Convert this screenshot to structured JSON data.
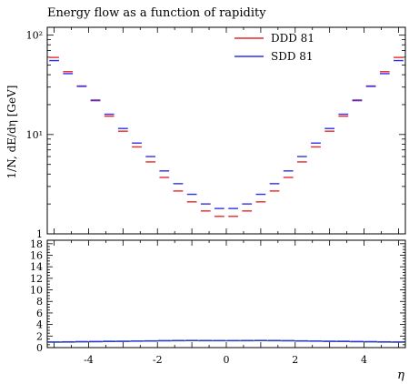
{
  "chart_data": {
    "type": "line",
    "title": "Energy flow as a function of rapidity",
    "xlabel": "η",
    "ylabel": "1/N, dE/dη [GeV]",
    "xlim": [
      -5.2,
      5.2
    ],
    "ylim": [
      1,
      120
    ],
    "yscale": "log",
    "y_ticks": [
      "1",
      "10¹",
      "10²"
    ],
    "x_ticks": [
      "-4",
      "-2",
      "0",
      "2",
      "4"
    ],
    "ratio_ticks": [
      "0",
      "2",
      "4",
      "6",
      "8",
      "10",
      "12",
      "14",
      "16",
      "18"
    ],
    "ratio_ylim": [
      0,
      18.6
    ],
    "legend_position": "top-right",
    "bin_edges": [
      -5.2,
      -4.8,
      -4.4,
      -4.0,
      -3.6,
      -3.2,
      -2.8,
      -2.4,
      -2.0,
      -1.6,
      -1.2,
      -0.8,
      -0.4,
      0.0,
      0.4,
      0.8,
      1.2,
      1.6,
      2.0,
      2.4,
      2.8,
      3.2,
      3.6,
      4.0,
      4.4,
      4.8,
      5.2
    ],
    "series": [
      {
        "name": "DDD 81",
        "color": "#e8272b",
        "values": [
          59.7,
          42.9,
          30.8,
          21.9,
          15.3,
          10.8,
          7.5,
          5.3,
          3.7,
          2.7,
          2.1,
          1.7,
          1.5,
          1.5,
          1.7,
          2.1,
          2.7,
          3.7,
          5.3,
          7.5,
          10.8,
          15.3,
          21.9,
          30.8,
          42.9,
          59.7
        ]
      },
      {
        "name": "SDD 81",
        "color": "#2f31e8",
        "values": [
          55.5,
          41.0,
          30.5,
          22.2,
          16.0,
          11.5,
          8.2,
          6.0,
          4.3,
          3.2,
          2.5,
          2.0,
          1.8,
          1.8,
          2.0,
          2.5,
          3.2,
          4.3,
          6.0,
          8.2,
          11.5,
          16.0,
          22.2,
          30.5,
          41.0,
          55.5
        ]
      }
    ],
    "ratio": {
      "line_color": "#1f7a2a",
      "values": [
        0.93,
        0.95,
        0.99,
        1.01,
        1.05,
        1.06,
        1.09,
        1.12,
        1.16,
        1.18,
        1.19,
        1.18,
        1.17,
        1.17,
        1.18,
        1.19,
        1.18,
        1.16,
        1.12,
        1.09,
        1.06,
        1.05,
        1.01,
        0.99,
        0.95,
        0.93
      ]
    }
  }
}
